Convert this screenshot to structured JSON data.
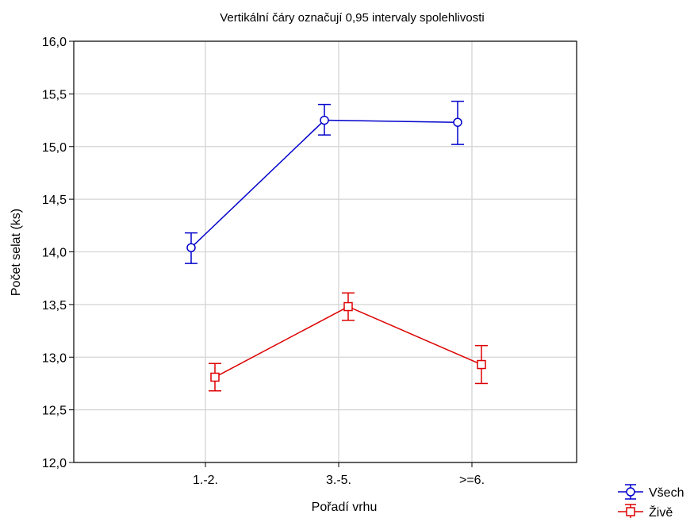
{
  "chart_data": {
    "type": "line",
    "title": "Vertikální čáry označují 0,95 intervaly spolehlivosti",
    "xlabel": "Pořadí vrhu",
    "ylabel": "Počet selat (ks)",
    "categories": [
      "1.-2.",
      "3.-5.",
      ">=6."
    ],
    "ylim": [
      12.0,
      16.0
    ],
    "yticks": [
      "12,0",
      "12,5",
      "13,0",
      "13,5",
      "14,0",
      "14,5",
      "15,0",
      "15,5",
      "16,0"
    ],
    "ytick_values": [
      12.0,
      12.5,
      13.0,
      13.5,
      14.0,
      14.5,
      15.0,
      15.5,
      16.0
    ],
    "grid": true,
    "legend_position": "bottom-right",
    "error_bars": "0.95 confidence intervals",
    "series": [
      {
        "name": "Všech",
        "color": "#0000cc",
        "marker": "circle",
        "values": [
          14.04,
          15.25,
          15.23
        ],
        "ci_lower": [
          13.89,
          15.11,
          15.02
        ],
        "ci_upper": [
          14.18,
          15.4,
          15.43
        ]
      },
      {
        "name": "Živě",
        "color": "#dd0000",
        "marker": "square",
        "values": [
          12.81,
          13.48,
          12.93
        ],
        "ci_lower": [
          12.68,
          13.35,
          12.75
        ],
        "ci_upper": [
          12.94,
          13.61,
          13.11
        ]
      }
    ]
  }
}
